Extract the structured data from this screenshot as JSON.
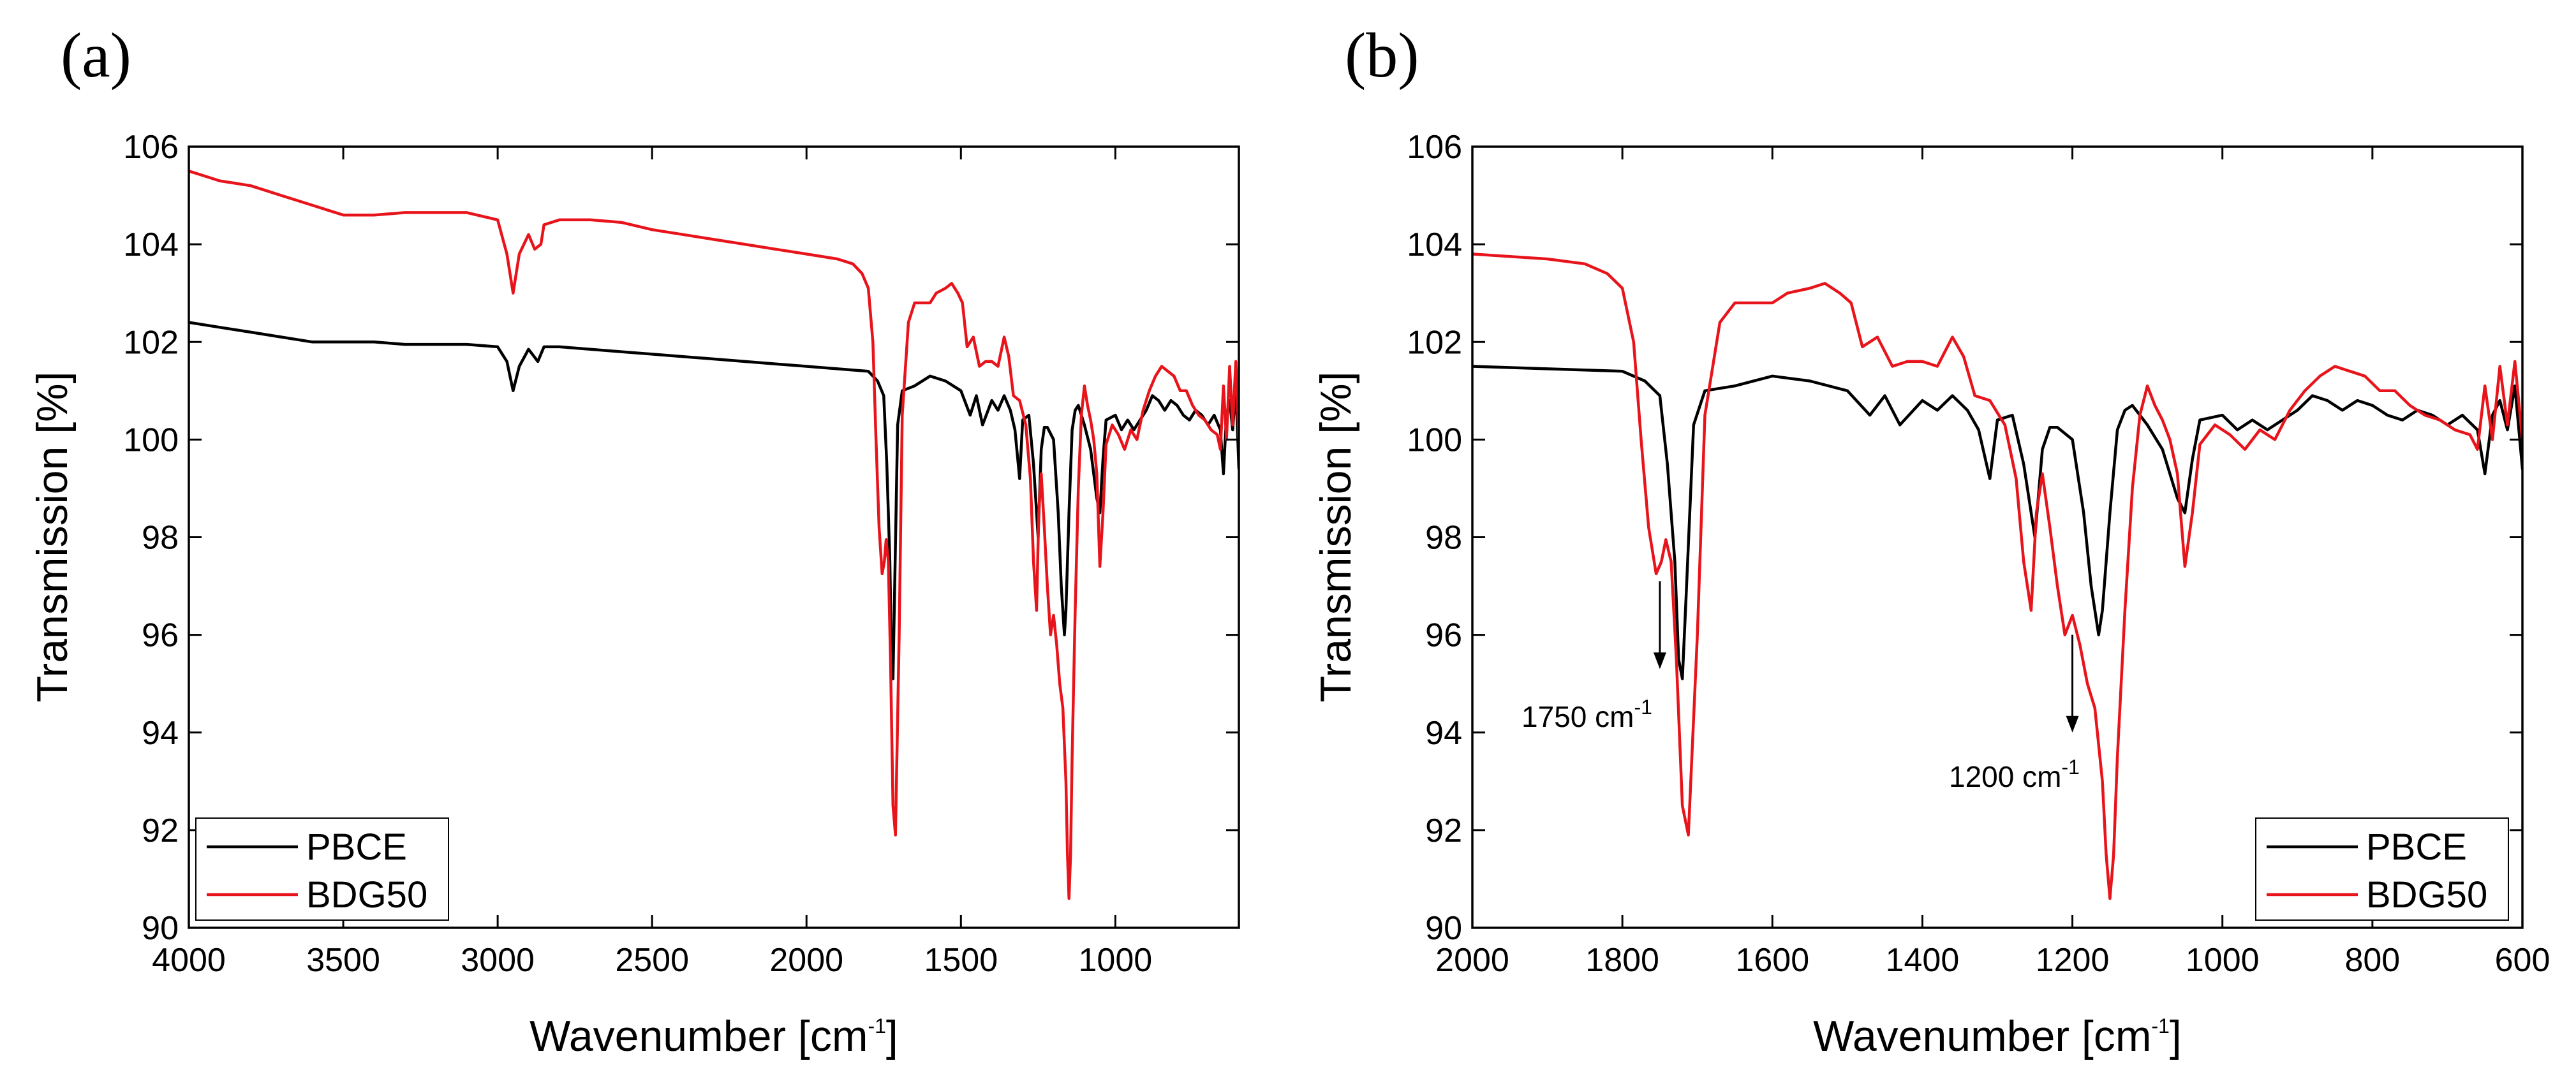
{
  "colors": {
    "PBCE": "#000000",
    "BDG50": "#e8141b"
  },
  "chart_data": [
    {
      "type": "line",
      "panel_label": "(a)",
      "xlabel_main": "Wavenumber [cm",
      "xlabel_sup": "-1",
      "xlabel_end": "]",
      "ylabel": "Transmission [%]",
      "xlim": [
        4000,
        600
      ],
      "ylim": [
        90,
        106
      ],
      "xticks": [
        4000,
        3500,
        3000,
        2500,
        2000,
        1500,
        1000
      ],
      "xtick_labels": [
        "4000",
        "3500",
        "3000",
        "2500",
        "2000",
        "1500",
        "1000"
      ],
      "yticks": [
        90,
        92,
        94,
        96,
        98,
        100,
        102,
        104,
        106
      ],
      "ytick_labels": [
        "90",
        "92",
        "94",
        "96",
        "98",
        "100",
        "102",
        "104",
        "106"
      ],
      "legend_position": "bottom-left",
      "legend": [
        "PBCE",
        "BDG50"
      ],
      "series": [
        {
          "name": "PBCE",
          "x": [
            4000,
            3900,
            3800,
            3700,
            3600,
            3500,
            3400,
            3300,
            3200,
            3100,
            3000,
            2970,
            2950,
            2930,
            2900,
            2870,
            2850,
            2800,
            2700,
            2600,
            2500,
            2400,
            2300,
            2200,
            2100,
            2000,
            1900,
            1800,
            1770,
            1750,
            1740,
            1730,
            1725,
            1720,
            1715,
            1705,
            1690,
            1650,
            1600,
            1550,
            1500,
            1470,
            1450,
            1430,
            1400,
            1380,
            1360,
            1340,
            1325,
            1310,
            1300,
            1280,
            1265,
            1250,
            1240,
            1230,
            1220,
            1200,
            1185,
            1175,
            1165,
            1160,
            1150,
            1140,
            1130,
            1120,
            1110,
            1100,
            1080,
            1060,
            1050,
            1040,
            1030,
            1000,
            980,
            960,
            940,
            920,
            900,
            880,
            860,
            840,
            820,
            800,
            780,
            760,
            740,
            720,
            700,
            680,
            660,
            650,
            640,
            630,
            620,
            610,
            600
          ],
          "values": [
            102.4,
            102.3,
            102.2,
            102.1,
            102.0,
            102.0,
            102.0,
            101.95,
            101.95,
            101.95,
            101.9,
            101.6,
            101.0,
            101.5,
            101.85,
            101.6,
            101.9,
            101.9,
            101.85,
            101.8,
            101.75,
            101.7,
            101.65,
            101.6,
            101.55,
            101.5,
            101.45,
            101.4,
            101.2,
            100.9,
            99.5,
            97.5,
            95.5,
            95.1,
            96.8,
            100.3,
            101.0,
            101.1,
            101.3,
            101.2,
            101.0,
            100.5,
            100.9,
            100.3,
            100.8,
            100.6,
            100.9,
            100.6,
            100.2,
            99.2,
            100.4,
            100.5,
            99.5,
            98.0,
            99.8,
            100.25,
            100.25,
            100.0,
            98.5,
            97.0,
            96.0,
            96.5,
            98.5,
            100.2,
            100.6,
            100.7,
            100.5,
            100.3,
            99.8,
            98.8,
            98.5,
            99.6,
            100.4,
            100.5,
            100.2,
            100.4,
            100.2,
            100.4,
            100.6,
            100.9,
            100.8,
            100.6,
            100.8,
            100.7,
            100.5,
            100.4,
            100.6,
            100.5,
            100.3,
            100.5,
            100.2,
            99.3,
            100.5,
            100.8,
            100.2,
            101.1,
            99.4
          ]
        },
        {
          "name": "BDG50",
          "x": [
            4000,
            3950,
            3900,
            3850,
            3800,
            3700,
            3600,
            3500,
            3400,
            3300,
            3200,
            3100,
            3000,
            2970,
            2950,
            2930,
            2900,
            2880,
            2860,
            2850,
            2800,
            2700,
            2600,
            2500,
            2400,
            2300,
            2200,
            2100,
            2000,
            1900,
            1850,
            1820,
            1800,
            1785,
            1775,
            1765,
            1755,
            1748,
            1742,
            1735,
            1728,
            1720,
            1712,
            1700,
            1690,
            1670,
            1650,
            1620,
            1600,
            1580,
            1550,
            1530,
            1510,
            1495,
            1480,
            1460,
            1440,
            1420,
            1400,
            1380,
            1360,
            1345,
            1330,
            1310,
            1290,
            1275,
            1265,
            1255,
            1248,
            1240,
            1230,
            1220,
            1210,
            1200,
            1190,
            1180,
            1170,
            1160,
            1155,
            1150,
            1145,
            1140,
            1130,
            1120,
            1110,
            1100,
            1090,
            1080,
            1070,
            1060,
            1050,
            1040,
            1030,
            1010,
            990,
            970,
            950,
            930,
            910,
            890,
            870,
            850,
            830,
            810,
            790,
            770,
            750,
            730,
            710,
            690,
            670,
            660,
            650,
            640,
            630,
            620,
            610,
            600
          ],
          "values": [
            105.5,
            105.4,
            105.3,
            105.25,
            105.2,
            105.0,
            104.8,
            104.6,
            104.6,
            104.65,
            104.65,
            104.65,
            104.5,
            103.8,
            103.0,
            103.8,
            104.2,
            103.9,
            104.0,
            104.4,
            104.5,
            104.5,
            104.45,
            104.3,
            104.2,
            104.1,
            104.0,
            103.9,
            103.8,
            103.7,
            103.6,
            103.4,
            103.1,
            102.0,
            100.0,
            98.2,
            97.25,
            97.5,
            97.95,
            97.5,
            95.5,
            92.5,
            91.9,
            96.0,
            100.5,
            102.4,
            102.8,
            102.8,
            102.8,
            103.0,
            103.1,
            103.2,
            103.0,
            102.8,
            101.9,
            102.1,
            101.5,
            101.6,
            101.6,
            101.5,
            102.1,
            101.7,
            100.9,
            100.8,
            100.3,
            99.2,
            97.5,
            96.5,
            98.5,
            99.3,
            98.2,
            97.0,
            96.0,
            96.4,
            95.8,
            95.0,
            94.5,
            93.0,
            91.5,
            90.6,
            91.5,
            93.5,
            96.5,
            99.0,
            100.5,
            101.1,
            100.7,
            100.4,
            100.0,
            99.3,
            97.4,
            98.5,
            99.9,
            100.3,
            100.1,
            99.8,
            100.2,
            100.0,
            100.6,
            101.0,
            101.3,
            101.5,
            101.4,
            101.3,
            101.0,
            101.0,
            100.7,
            100.5,
            100.4,
            100.2,
            100.1,
            99.8,
            101.1,
            100.0,
            101.5,
            100.3,
            101.6,
            100.0
          ]
        }
      ]
    },
    {
      "type": "line",
      "panel_label": "(b)",
      "xlabel_main": "Wavenumber [cm",
      "xlabel_sup": "-1",
      "xlabel_end": "]",
      "ylabel": "Transmission [%]",
      "xlim": [
        2000,
        600
      ],
      "ylim": [
        90,
        106
      ],
      "xticks": [
        2000,
        1800,
        1600,
        1400,
        1200,
        1000,
        800,
        600
      ],
      "xtick_labels": [
        "2000",
        "1800",
        "1600",
        "1400",
        "1200",
        "1000",
        "800",
        "600"
      ],
      "yticks": [
        90,
        92,
        94,
        96,
        98,
        100,
        102,
        104,
        106
      ],
      "ytick_labels": [
        "90",
        "92",
        "94",
        "96",
        "98",
        "100",
        "102",
        "104",
        "106"
      ],
      "legend_position": "bottom-right",
      "legend": [
        "PBCE",
        "BDG50"
      ],
      "annotations": [
        {
          "text_main": "1750 cm",
          "text_sup": "-1",
          "x": 1750,
          "arrow_from_y": 97.1,
          "arrow_to_y": 95.3
        },
        {
          "text_main": "1200 cm",
          "text_sup": "-1",
          "x": 1200,
          "arrow_from_y": 96.0,
          "arrow_to_y": 94.0
        }
      ]
    }
  ]
}
